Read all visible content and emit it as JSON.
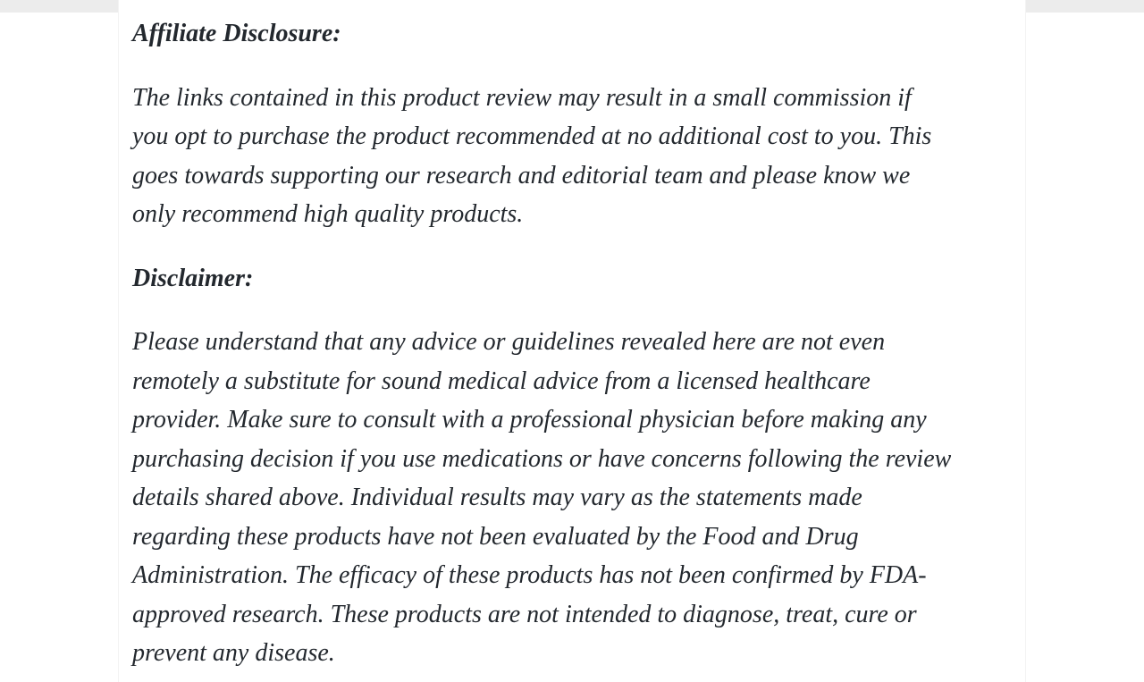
{
  "colors": {
    "page_background": "#ffffff",
    "top_strip": "#ececec",
    "text": "#23282e"
  },
  "article": {
    "affiliate": {
      "heading": "Affiliate Disclosure:",
      "lines": [
        "The links contained in this product review may result in a small commission if",
        "you opt to purchase the product recommended at no additional cost to you. This",
        "goes towards supporting our research and editorial team and please know we",
        "only recommend high quality products."
      ]
    },
    "disclaimer": {
      "heading": "Disclaimer:",
      "lines": [
        "Please understand that any advice or guidelines revealed here are not even",
        "remotely a substitute for sound medical advice from a licensed healthcare",
        "provider. Make sure to consult with a professional physician before making any",
        "purchasing decision if you use medications or have concerns following the review",
        "details shared above. Individual results may vary as the statements made",
        "regarding these products have not been evaluated by the Food and Drug",
        "Administration. The efficacy of these products has not been confirmed by FDA-",
        "approved research. These products are not intended to diagnose, treat, cure or",
        "prevent any disease."
      ]
    }
  }
}
